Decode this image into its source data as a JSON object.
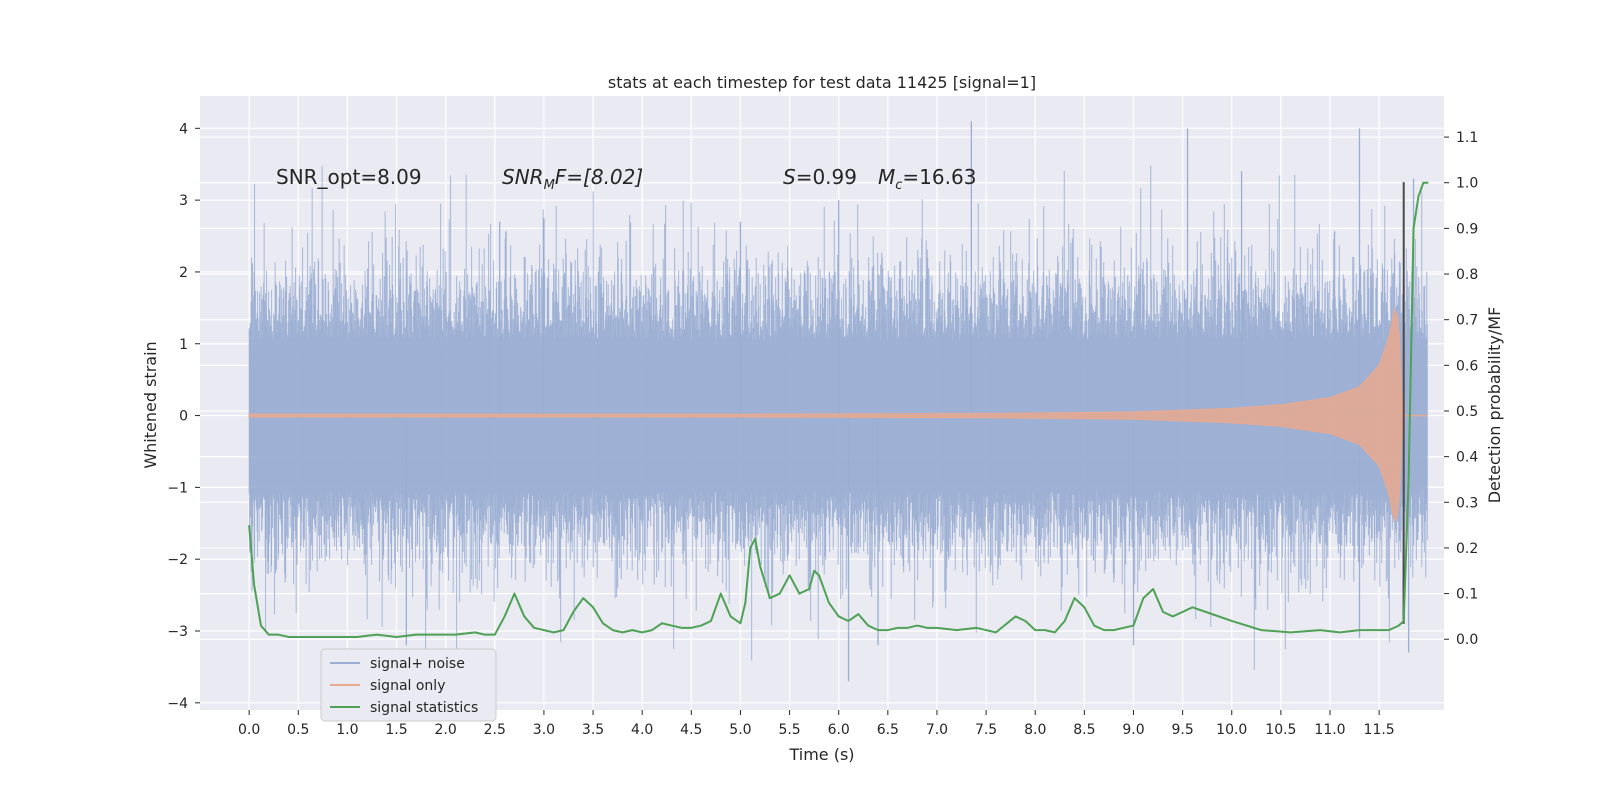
{
  "chart_data": {
    "type": "line",
    "title": "stats at each timestep for test data 11425 [signal=1]",
    "xlabel": "Time (s)",
    "ylabel": "Whitened strain",
    "ylabel_right": "Detection probability/MF",
    "xlim": [
      -0.5,
      12.16
    ],
    "ylim": [
      -4.1,
      4.45
    ],
    "ylim_right": [
      -0.155,
      1.19
    ],
    "x_ticks": [
      "0.0",
      "0.5",
      "1.0",
      "1.5",
      "2.0",
      "2.5",
      "3.0",
      "3.5",
      "4.0",
      "4.5",
      "5.0",
      "5.5",
      "6.0",
      "6.5",
      "7.0",
      "7.5",
      "8.0",
      "8.5",
      "9.0",
      "9.5",
      "10.0",
      "10.5",
      "11.0",
      "11.5"
    ],
    "y_ticks_left": [
      "4",
      "3",
      "2",
      "1",
      "0",
      "−1",
      "−2",
      "−3",
      "−4"
    ],
    "y_ticks_right": [
      "1.1",
      "1.0",
      "0.9",
      "0.8",
      "0.7",
      "0.6",
      "0.5",
      "0.4",
      "0.3",
      "0.2",
      "0.1",
      "0.0"
    ],
    "grid": true,
    "legend_position": "lower-left",
    "annotations": {
      "snr_opt": "SNR_opt=8.09",
      "snr_mf_main": "SNR",
      "snr_mf_sub": "M",
      "snr_mf_rest": "F=[8.02]",
      "s_var": "S",
      "s_val": "=0.99",
      "mc_var": "M",
      "mc_sub": "c",
      "mc_val": "=16.63"
    },
    "series": [
      {
        "name": "signal+ noise",
        "color": "#9aaed3",
        "axis": "left",
        "description_range": [
          -3.7,
          4.1
        ],
        "typical_band": [
          -1.5,
          1.5
        ],
        "peaks": [
          [
            2.55,
            2.7
          ],
          [
            3.0,
            2.75
          ],
          [
            5.0,
            2.7
          ],
          [
            6.0,
            3.0
          ],
          [
            7.35,
            4.1
          ],
          [
            9.55,
            4.0
          ],
          [
            10.1,
            3.4
          ],
          [
            11.3,
            4.0
          ],
          [
            11.85,
            3.3
          ]
        ],
        "troughs": [
          [
            1.6,
            -3.2
          ],
          [
            6.1,
            -3.7
          ],
          [
            6.4,
            -3.2
          ],
          [
            9.0,
            -3.2
          ],
          [
            11.3,
            -3.1
          ],
          [
            11.8,
            -3.3
          ]
        ]
      },
      {
        "name": "signal only",
        "color": "#e8a98f",
        "axis": "left",
        "envelope": [
          [
            0.0,
            0.02
          ],
          [
            5.0,
            0.02
          ],
          [
            7.5,
            0.03
          ],
          [
            9.0,
            0.05
          ],
          [
            10.0,
            0.1
          ],
          [
            10.5,
            0.15
          ],
          [
            11.0,
            0.25
          ],
          [
            11.3,
            0.4
          ],
          [
            11.5,
            0.7
          ],
          [
            11.6,
            1.1
          ],
          [
            11.66,
            1.5
          ],
          [
            11.7,
            1.3
          ],
          [
            11.74,
            0.0
          ]
        ]
      },
      {
        "name": "signal statistics",
        "color": "#4ea155",
        "axis": "right",
        "x": [
          0.0,
          0.05,
          0.12,
          0.2,
          0.3,
          0.4,
          0.5,
          0.7,
          0.9,
          1.1,
          1.3,
          1.5,
          1.7,
          1.9,
          2.1,
          2.3,
          2.4,
          2.5,
          2.6,
          2.7,
          2.8,
          2.9,
          3.0,
          3.1,
          3.2,
          3.3,
          3.4,
          3.5,
          3.6,
          3.7,
          3.8,
          3.9,
          4.0,
          4.1,
          4.2,
          4.3,
          4.4,
          4.5,
          4.6,
          4.7,
          4.8,
          4.9,
          5.0,
          5.05,
          5.1,
          5.15,
          5.2,
          5.3,
          5.4,
          5.5,
          5.6,
          5.7,
          5.75,
          5.8,
          5.9,
          6.0,
          6.1,
          6.2,
          6.3,
          6.4,
          6.5,
          6.6,
          6.7,
          6.8,
          6.9,
          7.0,
          7.2,
          7.4,
          7.6,
          7.8,
          7.9,
          8.0,
          8.1,
          8.2,
          8.3,
          8.4,
          8.5,
          8.6,
          8.7,
          8.8,
          8.9,
          9.0,
          9.1,
          9.2,
          9.3,
          9.4,
          9.5,
          9.6,
          9.8,
          10.0,
          10.3,
          10.6,
          10.9,
          11.1,
          11.3,
          11.5,
          11.6,
          11.7,
          11.75,
          11.8,
          11.85,
          11.9,
          11.95,
          12.0
        ],
        "values": [
          0.25,
          0.12,
          0.03,
          0.01,
          0.01,
          0.005,
          0.005,
          0.005,
          0.005,
          0.005,
          0.01,
          0.005,
          0.01,
          0.01,
          0.01,
          0.015,
          0.01,
          0.01,
          0.05,
          0.1,
          0.05,
          0.025,
          0.02,
          0.015,
          0.02,
          0.06,
          0.09,
          0.07,
          0.035,
          0.02,
          0.015,
          0.02,
          0.015,
          0.02,
          0.035,
          0.03,
          0.025,
          0.025,
          0.03,
          0.04,
          0.1,
          0.05,
          0.035,
          0.08,
          0.2,
          0.22,
          0.16,
          0.09,
          0.1,
          0.14,
          0.1,
          0.11,
          0.15,
          0.14,
          0.08,
          0.05,
          0.04,
          0.055,
          0.03,
          0.02,
          0.02,
          0.025,
          0.025,
          0.03,
          0.025,
          0.025,
          0.02,
          0.025,
          0.015,
          0.05,
          0.04,
          0.02,
          0.02,
          0.015,
          0.04,
          0.09,
          0.07,
          0.03,
          0.02,
          0.02,
          0.025,
          0.03,
          0.09,
          0.11,
          0.06,
          0.05,
          0.06,
          0.07,
          0.055,
          0.04,
          0.02,
          0.015,
          0.02,
          0.015,
          0.02,
          0.02,
          0.02,
          0.03,
          0.04,
          0.35,
          0.9,
          0.97,
          1.0,
          1.0
        ]
      },
      {
        "name": "",
        "color": "#4b4b4b",
        "axis": "left",
        "marker_line": {
          "x": 11.75,
          "y": [
            -2.9,
            3.25
          ]
        }
      }
    ],
    "legend": [
      {
        "label": "signal+ noise",
        "color": "#9aaed3"
      },
      {
        "label": "signal only",
        "color": "#e8a98f"
      },
      {
        "label": "signal statistics",
        "color": "#4ea155"
      }
    ]
  }
}
